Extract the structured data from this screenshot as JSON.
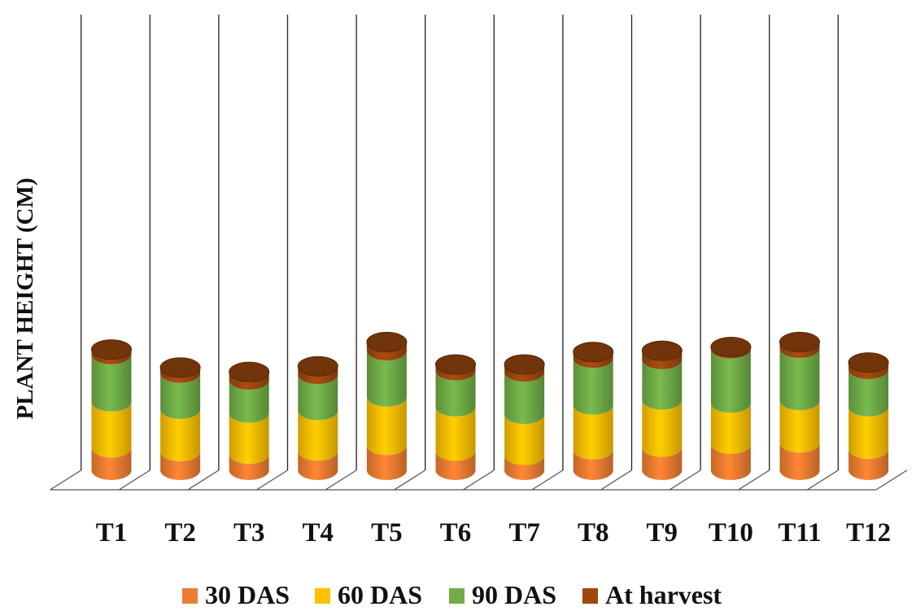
{
  "chart_data": {
    "type": "bar",
    "stacked": true,
    "bar_shape": "cylinder",
    "ylabel": "PLANT HEIGHT (CM)",
    "xlabel": "",
    "categories": [
      "T1",
      "T2",
      "T3",
      "T4",
      "T5",
      "T6",
      "T7",
      "T8",
      "T9",
      "T10",
      "T11",
      "T12"
    ],
    "series": [
      {
        "name": "30 DAS",
        "color": "#ED7D31",
        "values": [
          36,
          30,
          26,
          31,
          40,
          31,
          24,
          33,
          37,
          42,
          44,
          34
        ]
      },
      {
        "name": "60 DAS",
        "color": "#FFC000",
        "values": [
          110,
          98,
          92,
          96,
          118,
          102,
          90,
          105,
          113,
          108,
          112,
          102
        ]
      },
      {
        "name": "90 DAS",
        "color": "#70AD47",
        "values": [
          186,
          156,
          145,
          154,
          192,
          160,
          158,
          180,
          178,
          195,
          196,
          162
        ]
      },
      {
        "name": "At harvest",
        "color": "#9E480E",
        "values": [
          194,
          165,
          158,
          167,
          206,
          170,
          170,
          190,
          192,
          198,
          206,
          173
        ]
      }
    ],
    "grid": false,
    "legend_position": "bottom"
  }
}
